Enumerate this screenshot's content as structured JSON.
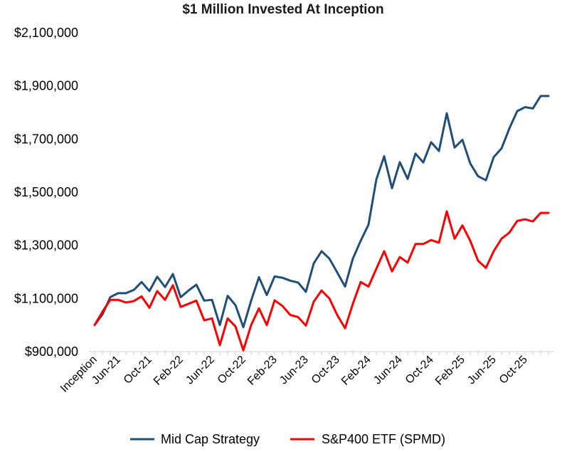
{
  "chart_data": {
    "type": "line",
    "title": "$1 Million Invested At Inception",
    "xlabel": "",
    "ylabel": "",
    "ylim": [
      900000,
      2100000
    ],
    "yticks": [
      "$900,000",
      "$1,100,000",
      "$1,300,000",
      "$1,500,000",
      "$1,700,000",
      "$1,900,000",
      "$2,100,000"
    ],
    "ytick_values": [
      900000,
      1100000,
      1300000,
      1500000,
      1700000,
      1900000,
      2100000
    ],
    "xtick_labels": [
      "Inception",
      "Jun-21",
      "Oct-21",
      "Feb-22",
      "Jun-22",
      "Oct-22",
      "Feb-23",
      "Jun-23",
      "Oct-23",
      "Feb-24",
      "Jun-24",
      "Oct-24",
      "Feb-25",
      "Jun-25",
      "Oct-25"
    ],
    "xtick_index": [
      0,
      3,
      7,
      11,
      15,
      19,
      23,
      27,
      31,
      35,
      39,
      43,
      47,
      51,
      55
    ],
    "grid": false,
    "legend_position": "bottom",
    "series": [
      {
        "name": "Mid Cap Strategy",
        "color": "#1f4e79",
        "values": [
          1000000,
          1040000,
          1105000,
          1120000,
          1120000,
          1132000,
          1162000,
          1128000,
          1182000,
          1143000,
          1192000,
          1105000,
          1130000,
          1152000,
          1092000,
          1095000,
          1000000,
          1110000,
          1075000,
          992000,
          1092000,
          1180000,
          1113000,
          1183000,
          1178000,
          1167000,
          1160000,
          1125000,
          1232000,
          1278000,
          1250000,
          1198000,
          1145000,
          1250000,
          1317000,
          1378000,
          1548000,
          1635000,
          1515000,
          1613000,
          1550000,
          1645000,
          1612000,
          1688000,
          1655000,
          1797000,
          1668000,
          1697000,
          1608000,
          1560000,
          1545000,
          1632000,
          1665000,
          1740000,
          1805000,
          1820000,
          1815000,
          1862000,
          1862000
        ]
      },
      {
        "name": "S&P400 ETF (SPMD)",
        "color": "#ff0000",
        "values": [
          1000000,
          1050000,
          1095000,
          1095000,
          1085000,
          1090000,
          1108000,
          1065000,
          1128000,
          1095000,
          1150000,
          1068000,
          1080000,
          1092000,
          1018000,
          1025000,
          925000,
          1025000,
          995000,
          905000,
          1000000,
          1063000,
          1000000,
          1093000,
          1072000,
          1038000,
          1030000,
          998000,
          1088000,
          1130000,
          1100000,
          1038000,
          988000,
          1080000,
          1162000,
          1145000,
          1212000,
          1278000,
          1202000,
          1256000,
          1235000,
          1305000,
          1305000,
          1320000,
          1310000,
          1428000,
          1325000,
          1375000,
          1317000,
          1242000,
          1215000,
          1278000,
          1325000,
          1348000,
          1392000,
          1398000,
          1390000,
          1422000,
          1422000
        ]
      }
    ]
  }
}
